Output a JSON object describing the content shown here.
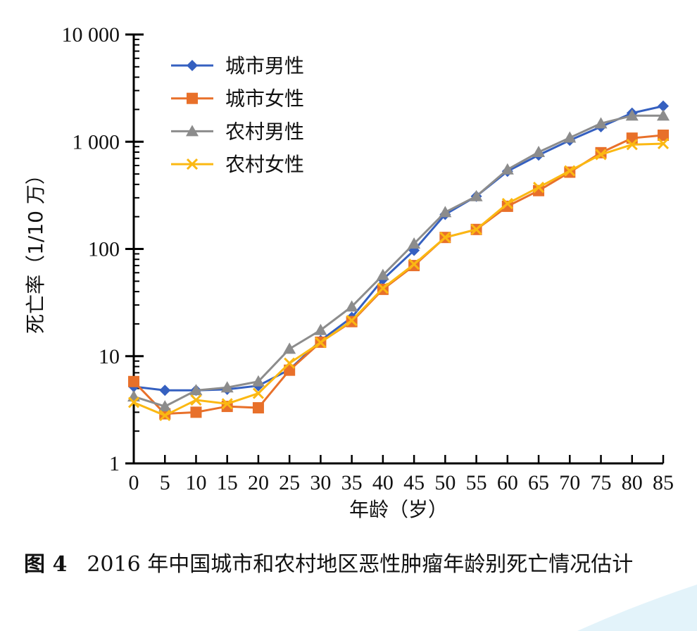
{
  "chart_data": {
    "type": "line",
    "title": "",
    "xlabel": "年龄（岁）",
    "ylabel": "死亡率（1/10 万）",
    "y_scale": "log",
    "ylim": [
      1,
      10000
    ],
    "xlim": [
      0,
      85
    ],
    "y_tick_labels": [
      "1",
      "10",
      "100",
      "1 000",
      "10 000"
    ],
    "y_tick_values": [
      1,
      10,
      100,
      1000,
      10000
    ],
    "x": [
      0,
      5,
      10,
      15,
      20,
      25,
      30,
      35,
      40,
      45,
      50,
      55,
      60,
      65,
      70,
      75,
      80,
      85
    ],
    "grid": false,
    "legend_position": "top-left",
    "series": [
      {
        "name": "城市男性",
        "color": "#3560c0",
        "marker": "diamond",
        "values": [
          5.2,
          4.8,
          4.8,
          4.9,
          5.3,
          7.5,
          14,
          23,
          52,
          97,
          210,
          310,
          530,
          750,
          1030,
          1380,
          1850,
          2150
        ]
      },
      {
        "name": "城市女性",
        "color": "#e8702a",
        "marker": "square",
        "values": [
          5.8,
          2.9,
          3.0,
          3.4,
          3.3,
          7.4,
          13.5,
          21,
          42,
          70,
          128,
          152,
          250,
          350,
          520,
          790,
          1080,
          1150
        ]
      },
      {
        "name": "农村男性",
        "color": "#8c8c8c",
        "marker": "triangle",
        "values": [
          4.2,
          3.4,
          4.8,
          5.1,
          5.8,
          11.7,
          17.5,
          29,
          57,
          112,
          220,
          310,
          550,
          800,
          1090,
          1480,
          1750,
          1750
        ]
      },
      {
        "name": "农村女性",
        "color": "#fbb812",
        "marker": "x",
        "values": [
          3.7,
          2.8,
          3.9,
          3.6,
          4.5,
          8.6,
          13.4,
          21.5,
          43,
          72,
          128,
          152,
          265,
          375,
          535,
          760,
          940,
          960
        ]
      }
    ]
  },
  "caption": {
    "label": "图 4",
    "text": "2016 年中国城市和农村地区恶性肿瘤年龄别死亡情况估计"
  }
}
